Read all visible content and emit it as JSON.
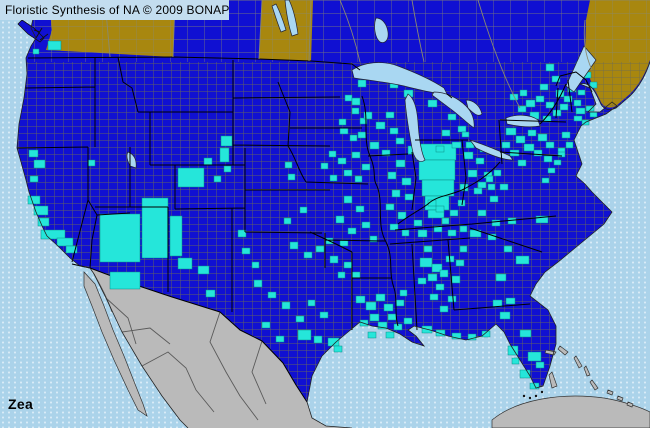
{
  "title": "Floristic Synthesis of NA © 2009 BONAP",
  "species": "Zea",
  "colors": {
    "ocean": "#ABD3EA",
    "ocean_dot": "#D8EBF7",
    "title_bar_bg": "#C3DDEF",
    "text": "#000000",
    "present_state_blue": "#1010D2",
    "no_record_olive": "#A8870F",
    "present_county_cyan": "#25E6DA",
    "county_line": "#6E6E52",
    "division_line": "#8A8A70",
    "state_border": "#000000",
    "lake_blue": "#A9D7F2",
    "mexico_gray": "#BABABA",
    "land_outline": "#222222"
  },
  "map": {
    "present_counties": [
      [
        48,
        41,
        13,
        9
      ],
      [
        33,
        49,
        6,
        5
      ],
      [
        29,
        150,
        9,
        7
      ],
      [
        34,
        160,
        11,
        8
      ],
      [
        30,
        176,
        8,
        6
      ],
      [
        28,
        196,
        12,
        8
      ],
      [
        34,
        206,
        14,
        9
      ],
      [
        38,
        218,
        11,
        8
      ],
      [
        41,
        230,
        24,
        9
      ],
      [
        57,
        238,
        16,
        8
      ],
      [
        66,
        246,
        11,
        7
      ],
      [
        88,
        160,
        7,
        6
      ],
      [
        100,
        214,
        40,
        48
      ],
      [
        142,
        198,
        26,
        60
      ],
      [
        110,
        272,
        30,
        17
      ],
      [
        178,
        258,
        14,
        11
      ],
      [
        198,
        266,
        11,
        8
      ],
      [
        206,
        290,
        9,
        7
      ],
      [
        170,
        216,
        12,
        40
      ],
      [
        178,
        168,
        26,
        19
      ],
      [
        204,
        158,
        8,
        7
      ],
      [
        214,
        176,
        7,
        6
      ],
      [
        221,
        136,
        11,
        10
      ],
      [
        220,
        148,
        9,
        14
      ],
      [
        224,
        166,
        7,
        6
      ],
      [
        285,
        162,
        7,
        6
      ],
      [
        288,
        174,
        7,
        6
      ],
      [
        321,
        163,
        7,
        6
      ],
      [
        329,
        151,
        7,
        6
      ],
      [
        339,
        119,
        7,
        6
      ],
      [
        358,
        80,
        8,
        7
      ],
      [
        300,
        207,
        7,
        6
      ],
      [
        284,
        218,
        7,
        6
      ],
      [
        345,
        95,
        7,
        6
      ],
      [
        352,
        108,
        7,
        6
      ],
      [
        340,
        128,
        8,
        6
      ],
      [
        360,
        118,
        7,
        6
      ],
      [
        350,
        135,
        7,
        6
      ],
      [
        338,
        158,
        8,
        6
      ],
      [
        352,
        152,
        8,
        6
      ],
      [
        362,
        164,
        8,
        6
      ],
      [
        344,
        170,
        8,
        6
      ],
      [
        330,
        175,
        7,
        6
      ],
      [
        355,
        176,
        7,
        6
      ],
      [
        352,
        98,
        8,
        7
      ],
      [
        364,
        112,
        8,
        7
      ],
      [
        376,
        122,
        9,
        7
      ],
      [
        386,
        112,
        8,
        6
      ],
      [
        390,
        128,
        8,
        6
      ],
      [
        370,
        142,
        9,
        7
      ],
      [
        382,
        150,
        8,
        6
      ],
      [
        358,
        132,
        8,
        6
      ],
      [
        396,
        138,
        8,
        6
      ],
      [
        396,
        160,
        9,
        7
      ],
      [
        388,
        172,
        8,
        7
      ],
      [
        402,
        178,
        9,
        7
      ],
      [
        392,
        190,
        8,
        7
      ],
      [
        405,
        194,
        8,
        6
      ],
      [
        386,
        204,
        8,
        6
      ],
      [
        398,
        212,
        8,
        7
      ],
      [
        390,
        224,
        8,
        6
      ],
      [
        402,
        230,
        7,
        6
      ],
      [
        408,
        146,
        11,
        8
      ],
      [
        416,
        144,
        40,
        16
      ],
      [
        419,
        160,
        36,
        20
      ],
      [
        422,
        180,
        32,
        16
      ],
      [
        425,
        196,
        24,
        14
      ],
      [
        428,
        210,
        16,
        8
      ],
      [
        404,
        90,
        9,
        7
      ],
      [
        390,
        82,
        8,
        6
      ],
      [
        428,
        100,
        9,
        7
      ],
      [
        448,
        114,
        8,
        6
      ],
      [
        458,
        126,
        8,
        6
      ],
      [
        442,
        130,
        8,
        6
      ],
      [
        452,
        142,
        9,
        6
      ],
      [
        436,
        146,
        8,
        6
      ],
      [
        466,
        142,
        8,
        6
      ],
      [
        462,
        132,
        7,
        5
      ],
      [
        464,
        152,
        9,
        7
      ],
      [
        476,
        158,
        8,
        6
      ],
      [
        468,
        170,
        9,
        7
      ],
      [
        484,
        172,
        8,
        6
      ],
      [
        460,
        184,
        8,
        7
      ],
      [
        474,
        188,
        8,
        6
      ],
      [
        488,
        184,
        7,
        6
      ],
      [
        480,
        146,
        8,
        6
      ],
      [
        344,
        196,
        8,
        7
      ],
      [
        356,
        206,
        8,
        6
      ],
      [
        336,
        216,
        8,
        7
      ],
      [
        348,
        228,
        8,
        6
      ],
      [
        362,
        222,
        8,
        6
      ],
      [
        340,
        240,
        8,
        6
      ],
      [
        370,
        236,
        7,
        6
      ],
      [
        436,
        206,
        8,
        6
      ],
      [
        450,
        210,
        8,
        6
      ],
      [
        428,
        200,
        8,
        6
      ],
      [
        458,
        200,
        7,
        6
      ],
      [
        418,
        230,
        9,
        7
      ],
      [
        434,
        226,
        8,
        6
      ],
      [
        448,
        230,
        8,
        6
      ],
      [
        414,
        220,
        8,
        6
      ],
      [
        442,
        218,
        7,
        6
      ],
      [
        460,
        226,
        7,
        6
      ],
      [
        290,
        242,
        8,
        7
      ],
      [
        304,
        252,
        8,
        6
      ],
      [
        316,
        246,
        8,
        6
      ],
      [
        330,
        256,
        8,
        7
      ],
      [
        344,
        262,
        8,
        6
      ],
      [
        352,
        272,
        8,
        6
      ],
      [
        338,
        272,
        7,
        6
      ],
      [
        326,
        238,
        7,
        6
      ],
      [
        238,
        230,
        8,
        7
      ],
      [
        242,
        248,
        8,
        6
      ],
      [
        252,
        262,
        7,
        6
      ],
      [
        254,
        280,
        8,
        7
      ],
      [
        268,
        292,
        8,
        6
      ],
      [
        282,
        302,
        8,
        7
      ],
      [
        296,
        316,
        8,
        6
      ],
      [
        298,
        330,
        13,
        10
      ],
      [
        314,
        336,
        8,
        7
      ],
      [
        328,
        338,
        11,
        8
      ],
      [
        334,
        346,
        8,
        6
      ],
      [
        262,
        322,
        8,
        6
      ],
      [
        276,
        336,
        8,
        6
      ],
      [
        308,
        300,
        7,
        6
      ],
      [
        320,
        312,
        8,
        6
      ],
      [
        356,
        296,
        9,
        7
      ],
      [
        366,
        302,
        10,
        8
      ],
      [
        376,
        294,
        9,
        7
      ],
      [
        384,
        304,
        9,
        7
      ],
      [
        370,
        314,
        9,
        7
      ],
      [
        360,
        320,
        8,
        6
      ],
      [
        378,
        322,
        9,
        7
      ],
      [
        388,
        314,
        8,
        6
      ],
      [
        394,
        324,
        8,
        6
      ],
      [
        386,
        332,
        8,
        6
      ],
      [
        368,
        332,
        8,
        6
      ],
      [
        396,
        300,
        8,
        6
      ],
      [
        404,
        318,
        8,
        6
      ],
      [
        400,
        290,
        7,
        6
      ],
      [
        420,
        258,
        12,
        9
      ],
      [
        432,
        264,
        10,
        8
      ],
      [
        428,
        274,
        9,
        7
      ],
      [
        440,
        270,
        8,
        7
      ],
      [
        418,
        278,
        8,
        6
      ],
      [
        446,
        256,
        8,
        6
      ],
      [
        456,
        260,
        8,
        6
      ],
      [
        436,
        284,
        8,
        6
      ],
      [
        452,
        276,
        8,
        7
      ],
      [
        430,
        294,
        8,
        6
      ],
      [
        448,
        296,
        8,
        6
      ],
      [
        440,
        306,
        8,
        6
      ],
      [
        424,
        246,
        8,
        6
      ],
      [
        460,
        246,
        7,
        6
      ],
      [
        422,
        326,
        10,
        7
      ],
      [
        436,
        330,
        9,
        6
      ],
      [
        452,
        333,
        9,
        6
      ],
      [
        468,
        334,
        8,
        6
      ],
      [
        482,
        331,
        8,
        6
      ],
      [
        493,
        300,
        9,
        7
      ],
      [
        500,
        312,
        10,
        7
      ],
      [
        520,
        330,
        11,
        7
      ],
      [
        508,
        346,
        10,
        9
      ],
      [
        528,
        352,
        13,
        9
      ],
      [
        520,
        370,
        10,
        8
      ],
      [
        530,
        383,
        9,
        6
      ],
      [
        536,
        362,
        8,
        6
      ],
      [
        512,
        358,
        7,
        6
      ],
      [
        536,
        216,
        12,
        7
      ],
      [
        516,
        256,
        13,
        8
      ],
      [
        496,
        274,
        10,
        7
      ],
      [
        506,
        298,
        9,
        6
      ],
      [
        504,
        246,
        8,
        6
      ],
      [
        488,
        234,
        8,
        6
      ],
      [
        470,
        230,
        11,
        7
      ],
      [
        492,
        220,
        8,
        6
      ],
      [
        508,
        218,
        8,
        6
      ],
      [
        478,
        210,
        8,
        6
      ],
      [
        490,
        196,
        8,
        6
      ],
      [
        500,
        184,
        8,
        6
      ],
      [
        486,
        176,
        7,
        6
      ],
      [
        478,
        182,
        8,
        6
      ],
      [
        494,
        170,
        7,
        6
      ],
      [
        548,
        168,
        7,
        5
      ],
      [
        554,
        160,
        7,
        5
      ],
      [
        558,
        148,
        7,
        5
      ],
      [
        542,
        178,
        7,
        5
      ],
      [
        506,
        128,
        10,
        7
      ],
      [
        516,
        136,
        9,
        7
      ],
      [
        528,
        130,
        8,
        6
      ],
      [
        538,
        134,
        9,
        7
      ],
      [
        524,
        144,
        10,
        7
      ],
      [
        510,
        150,
        9,
        6
      ],
      [
        534,
        150,
        8,
        6
      ],
      [
        546,
        142,
        8,
        6
      ],
      [
        544,
        156,
        8,
        6
      ],
      [
        518,
        160,
        8,
        6
      ],
      [
        502,
        142,
        8,
        6
      ],
      [
        562,
        132,
        8,
        6
      ],
      [
        566,
        142,
        7,
        6
      ],
      [
        558,
        152,
        7,
        5
      ],
      [
        526,
        100,
        9,
        7
      ],
      [
        536,
        96,
        8,
        6
      ],
      [
        546,
        102,
        8,
        6
      ],
      [
        530,
        112,
        9,
        7
      ],
      [
        543,
        116,
        8,
        6
      ],
      [
        553,
        110,
        8,
        6
      ],
      [
        518,
        106,
        8,
        6
      ],
      [
        510,
        94,
        8,
        6
      ],
      [
        520,
        90,
        7,
        6
      ],
      [
        556,
        90,
        8,
        7
      ],
      [
        564,
        96,
        8,
        6
      ],
      [
        568,
        86,
        8,
        6
      ],
      [
        560,
        104,
        8,
        6
      ],
      [
        574,
        100,
        7,
        6
      ],
      [
        578,
        90,
        7,
        5
      ],
      [
        576,
        108,
        9,
        6
      ],
      [
        586,
        106,
        8,
        5
      ],
      [
        574,
        116,
        8,
        5
      ],
      [
        582,
        120,
        7,
        5
      ],
      [
        590,
        112,
        7,
        5
      ],
      [
        576,
        62,
        8,
        7
      ],
      [
        584,
        72,
        7,
        6
      ],
      [
        590,
        82,
        7,
        6
      ],
      [
        546,
        64,
        8,
        7
      ],
      [
        552,
        76,
        8,
        6
      ],
      [
        540,
        84,
        8,
        6
      ]
    ]
  }
}
